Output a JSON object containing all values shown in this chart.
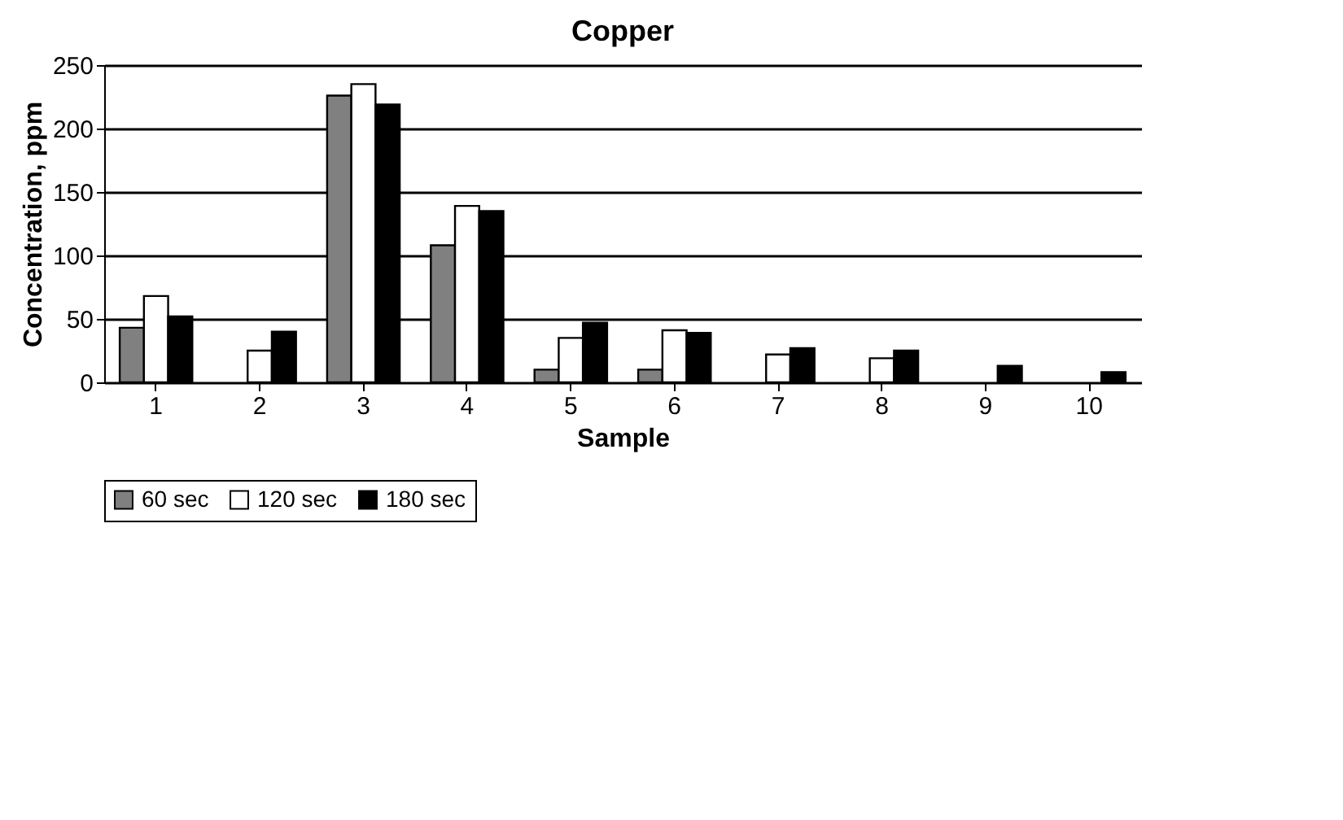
{
  "chart_data": {
    "type": "bar",
    "title": "Copper",
    "xlabel": "Sample",
    "ylabel": "Concentration, ppm",
    "categories": [
      "1",
      "2",
      "3",
      "4",
      "5",
      "6",
      "7",
      "8",
      "9",
      "10"
    ],
    "series": [
      {
        "name": "60 sec",
        "color": "#808080",
        "values": [
          43,
          null,
          226,
          108,
          10,
          10,
          null,
          null,
          null,
          null
        ]
      },
      {
        "name": "120 sec",
        "color": "#ffffff",
        "values": [
          68,
          25,
          235,
          139,
          35,
          41,
          22,
          19,
          null,
          null
        ]
      },
      {
        "name": "180 sec",
        "color": "#000000",
        "values": [
          52,
          40,
          219,
          135,
          47,
          39,
          27,
          25,
          13,
          8
        ]
      }
    ],
    "ylim": [
      0,
      250
    ],
    "yticks": [
      0,
      50,
      100,
      150,
      200,
      250
    ],
    "grid": "y",
    "legend": "bottom"
  }
}
